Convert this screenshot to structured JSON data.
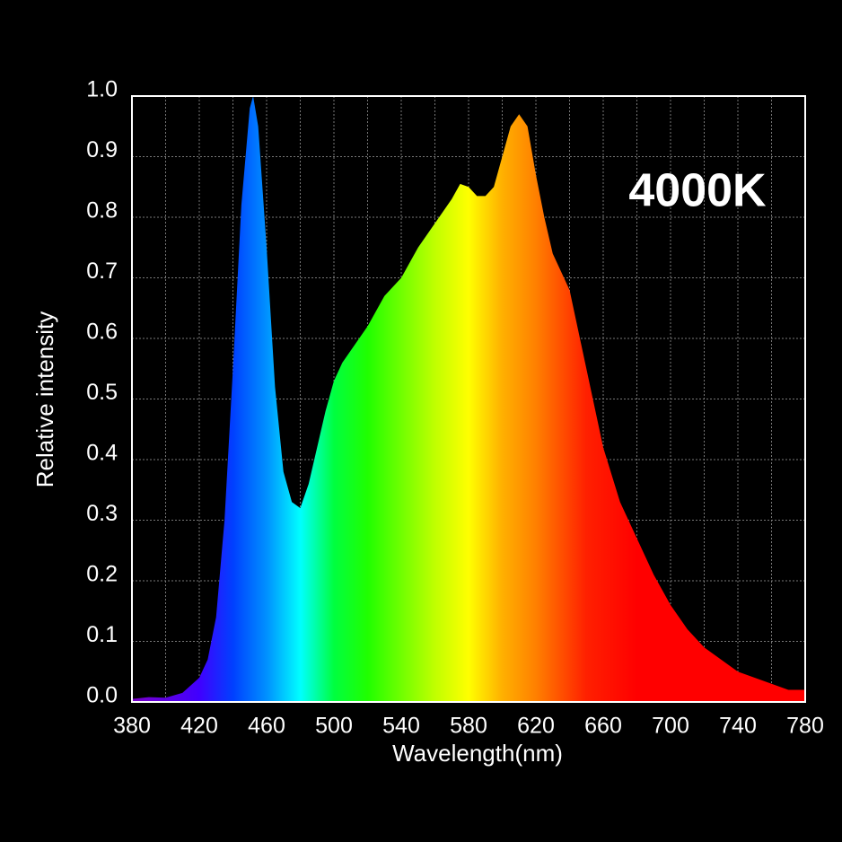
{
  "chart_data": {
    "type": "area",
    "annotation": "4000K",
    "xlabel": "Wavelength(nm)",
    "ylabel": "Relative intensity",
    "x": [
      380,
      390,
      400,
      410,
      420,
      425,
      430,
      435,
      440,
      445,
      450,
      452,
      455,
      460,
      465,
      470,
      475,
      480,
      485,
      490,
      495,
      500,
      505,
      510,
      520,
      530,
      540,
      550,
      560,
      570,
      575,
      580,
      585,
      590,
      595,
      600,
      605,
      610,
      615,
      620,
      625,
      630,
      640,
      650,
      660,
      670,
      680,
      690,
      700,
      710,
      720,
      730,
      740,
      750,
      760,
      770,
      780
    ],
    "values": [
      0.005,
      0.008,
      0.007,
      0.015,
      0.04,
      0.07,
      0.14,
      0.3,
      0.55,
      0.82,
      0.98,
      1.0,
      0.95,
      0.75,
      0.52,
      0.38,
      0.33,
      0.32,
      0.36,
      0.42,
      0.48,
      0.53,
      0.56,
      0.58,
      0.62,
      0.67,
      0.7,
      0.75,
      0.79,
      0.83,
      0.855,
      0.85,
      0.835,
      0.835,
      0.85,
      0.9,
      0.95,
      0.97,
      0.95,
      0.87,
      0.8,
      0.74,
      0.68,
      0.55,
      0.42,
      0.33,
      0.27,
      0.21,
      0.16,
      0.12,
      0.09,
      0.07,
      0.05,
      0.04,
      0.03,
      0.02,
      0.02
    ],
    "xlim": [
      380,
      780
    ],
    "ylim": [
      0,
      1
    ],
    "xticks": [
      380,
      420,
      460,
      500,
      540,
      580,
      620,
      660,
      700,
      740,
      780
    ],
    "x_minor_ticks": [
      400,
      440,
      480,
      520,
      560,
      600,
      640,
      680,
      720,
      760
    ],
    "yticks": [
      {
        "value": 0,
        "label": "0.0"
      },
      0.1,
      0.2,
      0.3,
      0.4,
      0.5,
      0.6,
      0.7,
      0.8,
      0.9,
      {
        "value": 1,
        "label": "1.0"
      }
    ],
    "grid": true,
    "fill_gradient": [
      {
        "x": 380,
        "color": "#7a00c8"
      },
      {
        "x": 420,
        "color": "#4000ff"
      },
      {
        "x": 440,
        "color": "#0040ff"
      },
      {
        "x": 460,
        "color": "#0090ff"
      },
      {
        "x": 480,
        "color": "#00ffff"
      },
      {
        "x": 500,
        "color": "#00ff40"
      },
      {
        "x": 520,
        "color": "#20ff00"
      },
      {
        "x": 560,
        "color": "#c0ff00"
      },
      {
        "x": 580,
        "color": "#ffff00"
      },
      {
        "x": 600,
        "color": "#ffb000"
      },
      {
        "x": 620,
        "color": "#ff8000"
      },
      {
        "x": 650,
        "color": "#ff2000"
      },
      {
        "x": 680,
        "color": "#ff0000"
      },
      {
        "x": 780,
        "color": "#ff0000"
      }
    ]
  }
}
